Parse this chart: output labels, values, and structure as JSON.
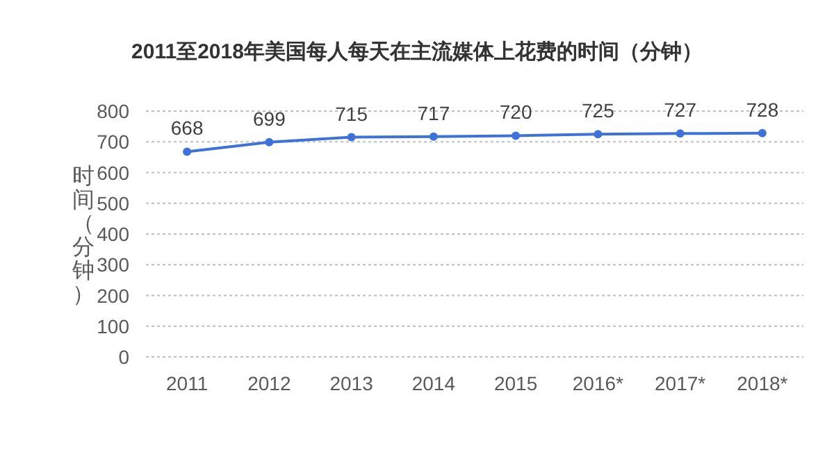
{
  "chart_data": {
    "type": "line",
    "title": "2011至2018年美国每人每天在主流媒体上花费的时间（分钟）",
    "ylabel": "时间（分钟）",
    "categories": [
      "2011",
      "2012",
      "2013",
      "2014",
      "2015",
      "2016*",
      "2017*",
      "2018*"
    ],
    "series": [
      {
        "color": "#3f72d9",
        "values": [
          668,
          699,
          715,
          717,
          720,
          725,
          727,
          728
        ]
      }
    ],
    "ylim": [
      0,
      800
    ],
    "yticks": [
      0,
      100,
      200,
      300,
      400,
      500,
      600,
      700,
      800
    ],
    "grid": "y",
    "data_labels": true,
    "marker": "circle",
    "line_style": "solid"
  }
}
